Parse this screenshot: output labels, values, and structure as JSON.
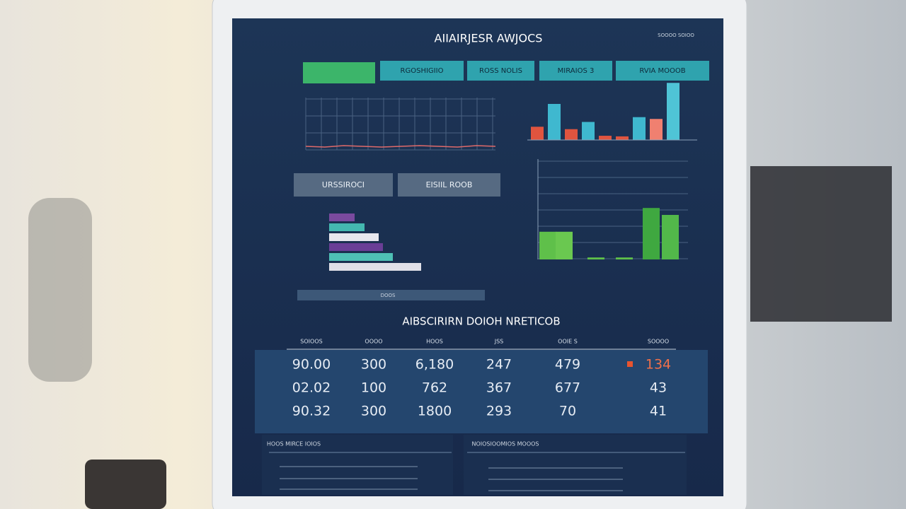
{
  "header": {
    "title": "AIIAIRJESR AWJOCS",
    "meta": "SOOOO SOIOO"
  },
  "tabs": [
    "RGOSHIGIIO",
    "ROSS NOLIS",
    "MIRAIOS 3",
    "RVIA MOOOB"
  ],
  "buttons": [
    "URSSIROCI",
    "EISIIL ROOB"
  ],
  "line_chart": {
    "label": "DOOS",
    "values": [
      5,
      4,
      6,
      5,
      4,
      5,
      6,
      5,
      4,
      6,
      5
    ]
  },
  "top_bars": {
    "values": [
      22,
      60,
      18,
      30,
      7,
      6,
      38,
      35,
      95
    ],
    "colors": [
      "#e0543f",
      "#3fb8cf",
      "#e0543f",
      "#3fb8cf",
      "#e0543f",
      "#e0543f",
      "#3fb8cf",
      "#f08070",
      "#4fc4d6"
    ]
  },
  "h_bars": {
    "values": [
      18,
      25,
      35,
      38,
      45,
      65
    ],
    "colors": [
      "#7a4a9e",
      "#44b8b0",
      "#e8e8ee",
      "#6a3e96",
      "#4ec0b5",
      "#e0e0e8"
    ]
  },
  "green_bars": {
    "values": [
      28,
      28,
      2,
      2,
      52,
      45
    ],
    "colors": [
      "#5fc04a",
      "#6ac850",
      "#5fc04a",
      "#5fc04a",
      "#3fa840",
      "#52b84a"
    ]
  },
  "section_title": "AIBSCIRIRN DOIOH NRETICOB",
  "table": {
    "headers": [
      "SOIOOS",
      "OOOO",
      "HOOS",
      "JSS",
      "OOIE S",
      "SOOOO"
    ],
    "rows": [
      [
        "90.00",
        "300",
        "6,180",
        "247",
        "479",
        "134"
      ],
      [
        "02.02",
        "100",
        "762",
        "367",
        "677",
        "43"
      ],
      [
        "90.32",
        "300",
        "1800",
        "293",
        "70",
        "41"
      ]
    ]
  },
  "footer": [
    "HOOS MIRCE IOIOS",
    "NOIOSIOOMIOS MOOOS"
  ]
}
